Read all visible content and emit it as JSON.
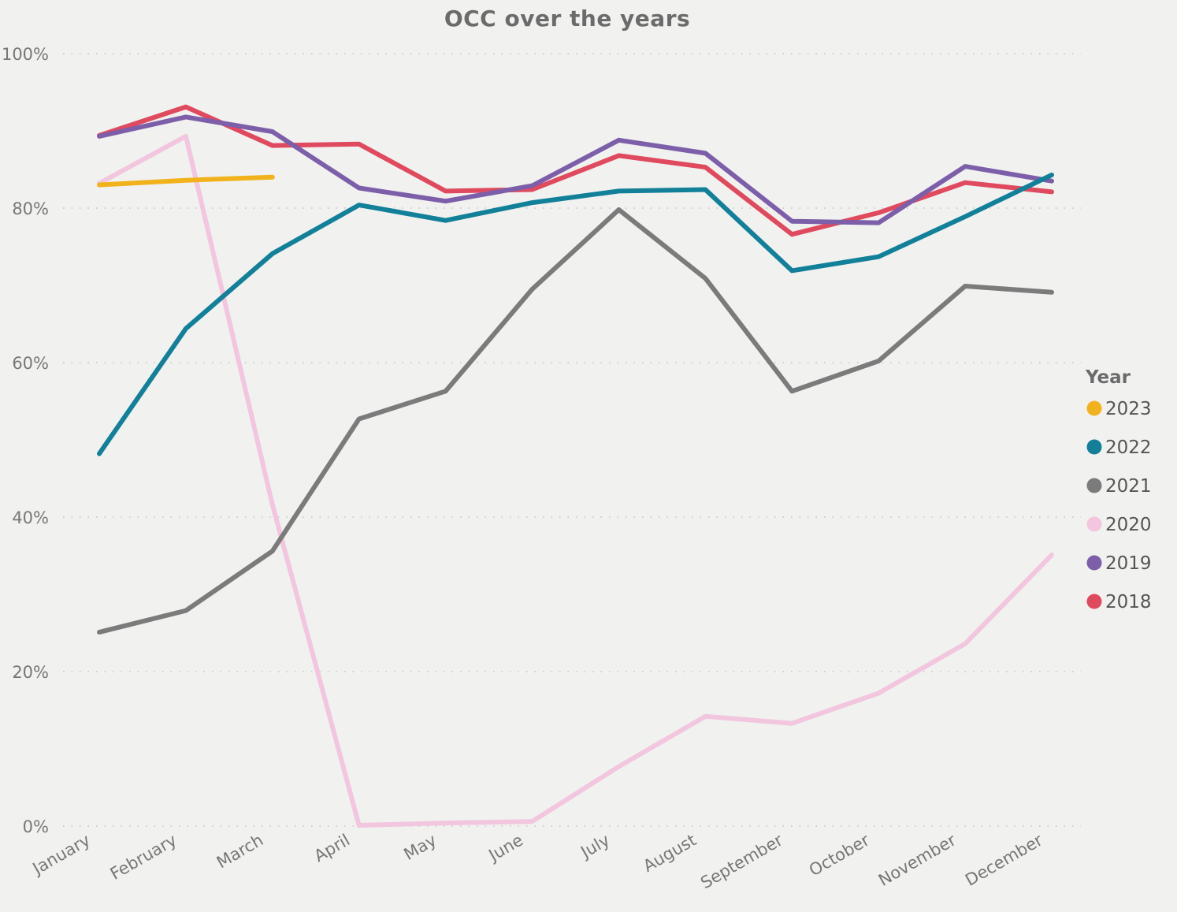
{
  "chart_data": {
    "type": "line",
    "title": "OCC over the years",
    "categories": [
      "January",
      "February",
      "March",
      "April",
      "May",
      "June",
      "July",
      "August",
      "September",
      "October",
      "November",
      "December"
    ],
    "ylim": [
      0,
      100
    ],
    "yticks": [
      0,
      20,
      40,
      60,
      80,
      100
    ],
    "ytick_labels": [
      "0%",
      "20%",
      "40%",
      "60%",
      "80%",
      "100%"
    ],
    "grid": true,
    "legend": {
      "title": "Year",
      "placement": "right"
    },
    "series": [
      {
        "name": "2023",
        "color": "#f2b21c",
        "values": [
          83.0,
          83.6,
          84.0,
          null,
          null,
          null,
          null,
          null,
          null,
          null,
          null,
          null
        ]
      },
      {
        "name": "2022",
        "color": "#118098",
        "values": [
          48.2,
          64.4,
          74.1,
          80.4,
          78.4,
          80.7,
          82.2,
          82.4,
          71.9,
          73.7,
          78.9,
          84.3
        ]
      },
      {
        "name": "2021",
        "color": "#7b7b7b",
        "values": [
          25.1,
          27.9,
          35.6,
          52.7,
          56.3,
          69.5,
          79.8,
          70.9,
          56.3,
          60.2,
          69.9,
          69.1
        ]
      },
      {
        "name": "2020",
        "color": "#f2c6de",
        "values": [
          83.2,
          89.3,
          41.6,
          0.1,
          0.4,
          0.6,
          7.7,
          14.2,
          13.3,
          17.2,
          23.6,
          35.1
        ]
      },
      {
        "name": "2019",
        "color": "#7d5fa9",
        "values": [
          89.3,
          91.8,
          89.9,
          82.6,
          80.9,
          82.9,
          88.8,
          87.1,
          78.3,
          78.1,
          85.4,
          83.5
        ]
      },
      {
        "name": "2018",
        "color": "#e04a5e",
        "values": [
          89.4,
          93.1,
          88.1,
          88.3,
          82.2,
          82.4,
          86.8,
          85.3,
          76.6,
          79.4,
          83.3,
          82.1
        ]
      }
    ]
  }
}
